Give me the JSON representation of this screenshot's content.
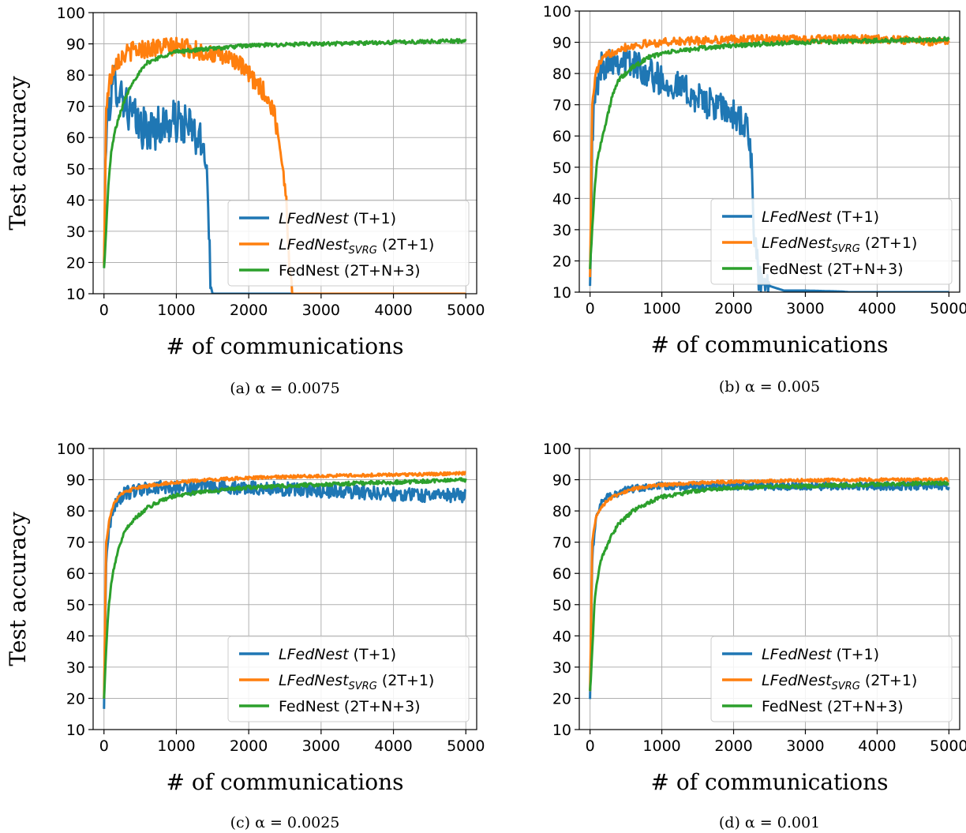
{
  "chart_data": [
    {
      "type": "line",
      "caption": "(a) α = 0.0075",
      "xlabel": "# of communications",
      "ylabel": "Test accuracy",
      "xlim": [
        -150,
        5150
      ],
      "ylim": [
        10,
        100
      ],
      "xticks": [
        0,
        1000,
        2000,
        3000,
        4000,
        5000
      ],
      "yticks": [
        10,
        20,
        30,
        40,
        50,
        60,
        70,
        80,
        90,
        100
      ],
      "grid": true,
      "legend_position": "lower-right",
      "series": [
        {
          "name": "LFedNest",
          "name_sub": "",
          "name_suffix": " (T+1)",
          "color": "#1f77b4",
          "noise": 7,
          "x": [
            0,
            30,
            80,
            150,
            250,
            350,
            450,
            600,
            800,
            1000,
            1200,
            1350,
            1420,
            1450,
            1480,
            1500,
            2000,
            3000,
            4000,
            5000
          ],
          "y": [
            18,
            62,
            72,
            78,
            74,
            68,
            65,
            62,
            64,
            65,
            63,
            57,
            55,
            30,
            12,
            10,
            10,
            10,
            10,
            10
          ]
        },
        {
          "name": "LFedNest",
          "name_sub": "SVRG",
          "name_suffix": " (2T+1)",
          "color": "#ff7f0e",
          "noise": 3,
          "x": [
            0,
            30,
            80,
            150,
            250,
            400,
            600,
            800,
            1000,
            1200,
            1400,
            1600,
            1800,
            2000,
            2200,
            2350,
            2450,
            2520,
            2560,
            2600,
            3000,
            4000,
            5000
          ],
          "y": [
            18,
            70,
            78,
            84,
            86,
            88,
            88.5,
            89,
            89,
            88.5,
            87,
            86,
            85,
            80,
            75,
            68,
            55,
            40,
            20,
            10,
            10,
            10,
            10
          ]
        },
        {
          "name": "FedNest",
          "name_sub": "",
          "name_suffix": " (2T+N+3)",
          "color": "#2ca02c",
          "noise": 0.6,
          "x": [
            0,
            30,
            60,
            100,
            150,
            200,
            300,
            400,
            600,
            800,
            1000,
            1500,
            2000,
            3000,
            4000,
            5000
          ],
          "y": [
            18,
            30,
            45,
            55,
            62,
            66,
            73,
            78,
            84,
            86,
            87.5,
            88.5,
            89.5,
            90,
            90.5,
            91
          ]
        }
      ]
    },
    {
      "type": "line",
      "caption": "(b) α = 0.005",
      "xlabel": "# of communications",
      "ylabel": "",
      "xlim": [
        -150,
        5150
      ],
      "ylim": [
        10,
        100
      ],
      "xticks": [
        0,
        1000,
        2000,
        3000,
        4000,
        5000
      ],
      "yticks": [
        10,
        20,
        30,
        40,
        50,
        60,
        70,
        80,
        90,
        100
      ],
      "grid": true,
      "legend_position": "lower-right",
      "series": [
        {
          "name": "LFedNest",
          "name_sub": "",
          "name_suffix": " (T+1)",
          "color": "#1f77b4",
          "noise": 5,
          "x": [
            0,
            30,
            80,
            150,
            300,
            500,
            700,
            900,
            1100,
            1300,
            1500,
            1700,
            1900,
            2100,
            2200,
            2250,
            2280,
            2350,
            2500,
            2700,
            3000,
            3500,
            3600,
            5000
          ],
          "y": [
            12,
            60,
            75,
            82,
            85,
            84,
            82,
            79,
            77,
            75,
            72,
            70,
            68,
            65,
            62,
            50,
            30,
            14,
            12,
            10.5,
            10.5,
            10.2,
            10,
            10
          ]
        },
        {
          "name": "LFedNest",
          "name_sub": "SVRG",
          "name_suffix": " (2T+1)",
          "color": "#ff7f0e",
          "noise": 1.3,
          "x": [
            0,
            30,
            80,
            150,
            250,
            400,
            600,
            800,
            1000,
            1500,
            2000,
            3000,
            4000,
            5000
          ],
          "y": [
            16,
            70,
            80,
            84,
            86,
            88,
            89,
            89.5,
            90,
            90.5,
            91,
            91,
            91,
            90
          ]
        },
        {
          "name": "FedNest",
          "name_sub": "",
          "name_suffix": " (2T+N+3)",
          "color": "#2ca02c",
          "noise": 0.7,
          "x": [
            0,
            30,
            60,
            100,
            150,
            200,
            300,
            400,
            600,
            800,
            1000,
            1500,
            2000,
            3000,
            4000,
            5000
          ],
          "y": [
            18,
            30,
            42,
            52,
            58,
            62,
            72,
            78,
            82,
            85,
            86.5,
            88,
            89,
            90,
            90.5,
            91
          ]
        }
      ]
    },
    {
      "type": "line",
      "caption": "(c) α = 0.0025",
      "xlabel": "# of communications",
      "ylabel": "Test accuracy",
      "xlim": [
        -150,
        5150
      ],
      "ylim": [
        10,
        100
      ],
      "xticks": [
        0,
        1000,
        2000,
        3000,
        4000,
        5000
      ],
      "yticks": [
        10,
        20,
        30,
        40,
        50,
        60,
        70,
        80,
        90,
        100
      ],
      "grid": true,
      "legend_position": "lower-right",
      "series": [
        {
          "name": "LFedNest",
          "name_sub": "",
          "name_suffix": " (T+1)",
          "color": "#1f77b4",
          "noise": 2.2,
          "x": [
            0,
            30,
            80,
            150,
            250,
            400,
            600,
            800,
            1000,
            1500,
            2000,
            2500,
            3000,
            3500,
            4000,
            4500,
            5000
          ],
          "y": [
            17,
            65,
            76,
            82,
            85,
            86.5,
            87,
            87.5,
            87.5,
            87.5,
            87.5,
            87,
            86.5,
            86,
            85.5,
            85,
            85
          ]
        },
        {
          "name": "LFedNest",
          "name_sub": "SVRG",
          "name_suffix": " (2T+1)",
          "color": "#ff7f0e",
          "noise": 0.5,
          "x": [
            0,
            30,
            80,
            150,
            250,
            400,
            600,
            800,
            1000,
            1500,
            2000,
            3000,
            4000,
            5000
          ],
          "y": [
            20,
            70,
            78,
            83,
            85.5,
            87,
            88,
            88.7,
            89.2,
            90,
            90.6,
            91.2,
            91.6,
            92
          ]
        },
        {
          "name": "FedNest",
          "name_sub": "",
          "name_suffix": " (2T+N+3)",
          "color": "#2ca02c",
          "noise": 0.6,
          "x": [
            0,
            30,
            60,
            100,
            150,
            200,
            300,
            400,
            600,
            800,
            1000,
            1500,
            2000,
            3000,
            4000,
            5000
          ],
          "y": [
            20,
            35,
            48,
            57,
            63,
            68,
            74,
            77,
            81,
            83.5,
            85,
            86.5,
            87.5,
            88.5,
            89.2,
            90
          ]
        }
      ]
    },
    {
      "type": "line",
      "caption": "(d) α = 0.001",
      "xlabel": "# of communications",
      "ylabel": "",
      "xlim": [
        -150,
        5150
      ],
      "ylim": [
        10,
        100
      ],
      "xticks": [
        0,
        1000,
        2000,
        3000,
        4000,
        5000
      ],
      "yticks": [
        10,
        20,
        30,
        40,
        50,
        60,
        70,
        80,
        90,
        100
      ],
      "grid": true,
      "legend_position": "lower-right",
      "series": [
        {
          "name": "LFedNest",
          "name_sub": "",
          "name_suffix": " (T+1)",
          "color": "#1f77b4",
          "noise": 1.3,
          "x": [
            0,
            30,
            80,
            150,
            250,
            400,
            600,
            800,
            1000,
            1500,
            2000,
            3000,
            4000,
            5000
          ],
          "y": [
            19,
            65,
            78,
            82,
            84.5,
            86,
            87,
            87.5,
            87.8,
            88,
            88,
            88,
            88,
            88
          ]
        },
        {
          "name": "LFedNest",
          "name_sub": "SVRG",
          "name_suffix": " (2T+1)",
          "color": "#ff7f0e",
          "noise": 0.5,
          "x": [
            0,
            30,
            80,
            150,
            250,
            400,
            600,
            800,
            1000,
            1500,
            2000,
            3000,
            4000,
            5000
          ],
          "y": [
            22,
            70,
            78,
            81,
            83.5,
            85.5,
            87,
            87.8,
            88.3,
            89,
            89.4,
            89.8,
            90,
            90
          ]
        },
        {
          "name": "FedNest",
          "name_sub": "",
          "name_suffix": " (2T+N+3)",
          "color": "#2ca02c",
          "noise": 0.6,
          "x": [
            0,
            30,
            60,
            100,
            150,
            200,
            300,
            400,
            600,
            800,
            1000,
            1500,
            2000,
            3000,
            4000,
            5000
          ],
          "y": [
            22,
            35,
            50,
            58,
            64,
            67,
            72,
            76,
            80,
            82.5,
            84.5,
            86.5,
            87.5,
            88,
            88.5,
            89
          ]
        }
      ]
    }
  ]
}
